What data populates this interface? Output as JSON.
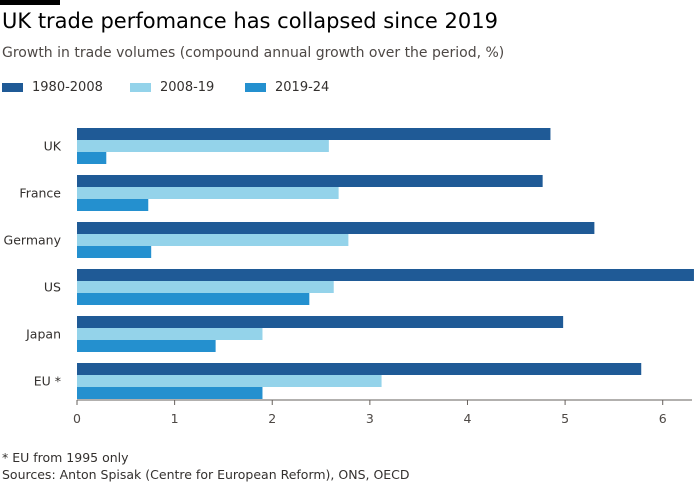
{
  "header": {
    "title": "UK trade perfomance has collapsed since 2019",
    "subtitle": "Growth in trade volumes (compound annual growth over the period, %)"
  },
  "footer": {
    "note": "* EU from 1995 only",
    "sources": "Sources: Anton Spisak (Centre for European Reform), ONS, OECD"
  },
  "chart_data": {
    "type": "bar",
    "orientation": "horizontal",
    "title": "UK trade perfomance has collapsed since 2019",
    "subtitle": "Growth in trade volumes (compound annual growth over the period, %)",
    "xlabel": "",
    "ylabel": "",
    "categories": [
      "UK",
      "France",
      "Germany",
      "US",
      "Japan",
      "EU *"
    ],
    "series": [
      {
        "name": "1980-2008",
        "color": "#1f5a96",
        "values": [
          4.85,
          4.77,
          5.3,
          6.32,
          4.98,
          5.78
        ]
      },
      {
        "name": "2008-19",
        "color": "#94d3ea",
        "values": [
          2.58,
          2.68,
          2.78,
          2.63,
          1.9,
          3.12
        ]
      },
      {
        "name": "2019-24",
        "color": "#2490cf",
        "values": [
          0.3,
          0.73,
          0.76,
          2.38,
          1.42,
          1.9
        ]
      }
    ],
    "xlim": [
      0,
      6.3
    ],
    "xticks": [
      0,
      1,
      2,
      3,
      4,
      5,
      6
    ],
    "grid": false,
    "legend_position": "top-left"
  }
}
